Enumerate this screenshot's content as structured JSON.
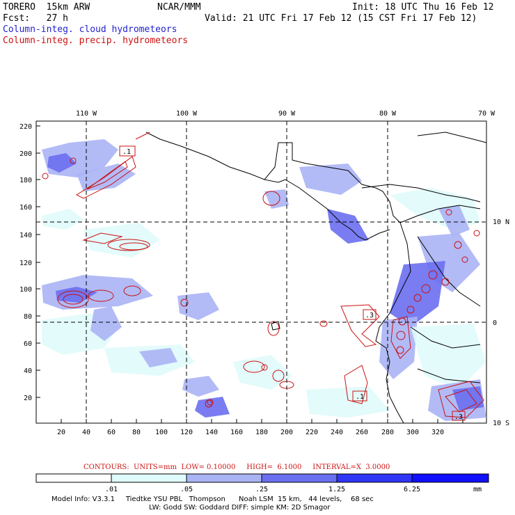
{
  "header": {
    "model": "TORERO  15km ARW",
    "center": "NCAR/MMM",
    "init": "Init: 18 UTC Thu 16 Feb 12",
    "fcst": "Fcst:   27 h",
    "valid": "Valid: 21 UTC Fri 17 Feb 12 (15 CST Fri 17 Feb 12)",
    "field1": "Column-integ. cloud hydrometeors",
    "field2": "Column-integ. precip. hydrometeors"
  },
  "top_axis": [
    "110 W",
    "100 W",
    "90 W",
    "80 W",
    "70 W"
  ],
  "right_axis": [
    "10 N",
    "0",
    "10 S"
  ],
  "y_ticks": [
    "220",
    "200",
    "180",
    "160",
    "140",
    "120",
    "100",
    "80",
    "60",
    "40",
    "20"
  ],
  "x_ticks": [
    "20",
    "40",
    "60",
    "80",
    "100",
    "120",
    "140",
    "160",
    "180",
    "200",
    "220",
    "240",
    "260",
    "280",
    "300",
    "320"
  ],
  "box_labels": [
    ".1",
    ".3",
    ".1",
    ".3"
  ],
  "contours_line": "CONTOURS:  UNITS=mm  LOW= 0.10000     HIGH=  6.1000     INTERVAL=X  3.0000",
  "colorbar": {
    "labels": [
      ".01",
      ".05",
      ".25",
      "1.25",
      "6.25"
    ],
    "unit": "mm",
    "colors": [
      "#ffffff",
      "#e0fbfb",
      "#aab4f5",
      "#6a6ff0",
      "#2f35f5",
      "#1010ff"
    ]
  },
  "footer": {
    "line1": "Model Info: V3.3.1     Tiedtke YSU PBL   Thompson      Noah LSM  15 km,   44 levels,    68 sec",
    "line2": "LW: Godd SW: Goddard DIFF: simple KM: 2D Smagor"
  },
  "colors": {
    "cloud": "#2222cc",
    "precip": "#cc1111"
  }
}
